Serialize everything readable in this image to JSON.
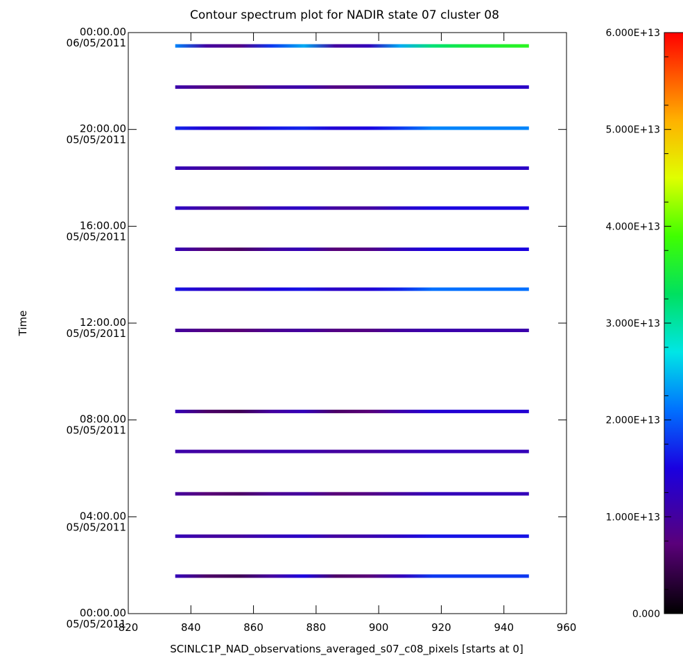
{
  "chart_data": {
    "type": "heatmap",
    "title": "Contour spectrum plot for NADIR state 07 cluster 08",
    "xlabel": "SCINLC1P_NAD_observations_averaged_s07_c08_pixels [starts at 0]",
    "ylabel": "Time",
    "xlim": [
      820,
      960
    ],
    "x_ticks": [
      "820",
      "840",
      "860",
      "880",
      "900",
      "920",
      "940",
      "960"
    ],
    "y_ticks": [
      {
        "time": "00:00.00",
        "date": "05/05/2011",
        "hours": 0
      },
      {
        "time": "04:00.00",
        "date": "05/05/2011",
        "hours": 4
      },
      {
        "time": "08:00.00",
        "date": "05/05/2011",
        "hours": 8
      },
      {
        "time": "12:00.00",
        "date": "05/05/2011",
        "hours": 12
      },
      {
        "time": "16:00.00",
        "date": "05/05/2011",
        "hours": 16
      },
      {
        "time": "20:00.00",
        "date": "05/05/2011",
        "hours": 20
      },
      {
        "time": "00:00.00",
        "date": "06/05/2011",
        "hours": 24
      }
    ],
    "ylim_hours": [
      0,
      24
    ],
    "data_x_range": [
      835,
      948
    ],
    "colorbar": {
      "min": 0,
      "max": 60000000000000.0,
      "ticks": [
        "0.000",
        "1.000E+13",
        "2.000E+13",
        "3.000E+13",
        "4.000E+13",
        "5.000E+13",
        "6.000E+13"
      ],
      "colormap": "rainbow"
    },
    "observation_hours": [
      1.55,
      3.2,
      4.95,
      6.7,
      8.35,
      11.7,
      13.4,
      15.05,
      16.75,
      18.4,
      20.05,
      21.75,
      23.45
    ],
    "series": [
      {
        "hours": 1.55,
        "values": [
          12000000000000.0,
          6000000000000.0,
          5000000000000.0,
          10000000000000.0,
          15000000000000.0,
          6000000000000.0,
          7000000000000.0,
          12000000000000.0,
          18000000000000.0,
          18000000000000.0,
          18000000000000.0,
          18000000000000.0
        ]
      },
      {
        "hours": 3.2,
        "values": [
          12000000000000.0,
          10000000000000.0,
          10000000000000.0,
          12000000000000.0,
          13000000000000.0,
          10000000000000.0,
          11000000000000.0,
          13000000000000.0,
          16000000000000.0,
          16000000000000.0,
          16000000000000.0,
          16000000000000.0
        ]
      },
      {
        "hours": 4.95,
        "values": [
          10000000000000.0,
          7000000000000.0,
          6000000000000.0,
          9000000000000.0,
          10000000000000.0,
          7000000000000.0,
          8000000000000.0,
          10000000000000.0,
          12000000000000.0,
          12000000000000.0,
          12000000000000.0,
          12000000000000.0
        ]
      },
      {
        "hours": 6.7,
        "values": [
          11000000000000.0,
          10000000000000.0,
          10000000000000.0,
          11000000000000.0,
          11000000000000.0,
          10000000000000.0,
          10000000000000.0,
          11000000000000.0,
          12000000000000.0,
          12000000000000.0,
          12000000000000.0,
          12000000000000.0
        ]
      },
      {
        "hours": 8.35,
        "values": [
          12000000000000.0,
          6000000000000.0,
          5000000000000.0,
          10000000000000.0,
          12000000000000.0,
          6000000000000.0,
          7000000000000.0,
          11000000000000.0,
          14000000000000.0,
          14000000000000.0,
          14000000000000.0,
          14000000000000.0
        ]
      },
      {
        "hours": 11.7,
        "values": [
          10000000000000.0,
          8000000000000.0,
          7000000000000.0,
          9000000000000.0,
          10000000000000.0,
          8000000000000.0,
          8000000000000.0,
          10000000000000.0,
          11000000000000.0,
          11000000000000.0,
          11000000000000.0,
          11000000000000.0
        ]
      },
      {
        "hours": 13.4,
        "values": [
          16000000000000.0,
          13000000000000.0,
          12000000000000.0,
          15000000000000.0,
          16000000000000.0,
          13000000000000.0,
          14000000000000.0,
          17000000000000.0,
          21000000000000.0,
          21000000000000.0,
          21000000000000.0,
          21000000000000.0
        ]
      },
      {
        "hours": 15.05,
        "values": [
          12000000000000.0,
          7000000000000.0,
          6000000000000.0,
          10000000000000.0,
          12000000000000.0,
          7000000000000.0,
          8000000000000.0,
          12000000000000.0,
          15000000000000.0,
          15000000000000.0,
          15000000000000.0,
          15000000000000.0
        ]
      },
      {
        "hours": 16.75,
        "values": [
          13000000000000.0,
          10000000000000.0,
          9000000000000.0,
          12000000000000.0,
          13000000000000.0,
          10000000000000.0,
          10000000000000.0,
          13000000000000.0,
          15000000000000.0,
          15000000000000.0,
          15000000000000.0,
          15000000000000.0
        ]
      },
      {
        "hours": 18.4,
        "values": [
          12000000000000.0,
          10000000000000.0,
          10000000000000.0,
          12000000000000.0,
          12000000000000.0,
          10000000000000.0,
          11000000000000.0,
          12000000000000.0,
          13000000000000.0,
          13000000000000.0,
          13000000000000.0,
          13000000000000.0
        ]
      },
      {
        "hours": 20.05,
        "values": [
          17000000000000.0,
          14000000000000.0,
          13000000000000.0,
          16000000000000.0,
          17000000000000.0,
          14000000000000.0,
          15000000000000.0,
          18000000000000.0,
          22000000000000.0,
          22000000000000.0,
          22000000000000.0,
          22000000000000.0
        ]
      },
      {
        "hours": 21.75,
        "values": [
          11000000000000.0,
          8000000000000.0,
          7000000000000.0,
          10000000000000.0,
          11000000000000.0,
          8000000000000.0,
          9000000000000.0,
          11000000000000.0,
          13000000000000.0,
          13000000000000.0,
          13000000000000.0,
          13000000000000.0
        ]
      },
      {
        "hours": 23.45,
        "values": [
          22000000000000.0,
          10000000000000.0,
          8000000000000.0,
          18000000000000.0,
          24000000000000.0,
          10000000000000.0,
          12000000000000.0,
          24000000000000.0,
          32000000000000.0,
          35000000000000.0,
          36000000000000.0,
          37000000000000.0
        ]
      }
    ]
  }
}
